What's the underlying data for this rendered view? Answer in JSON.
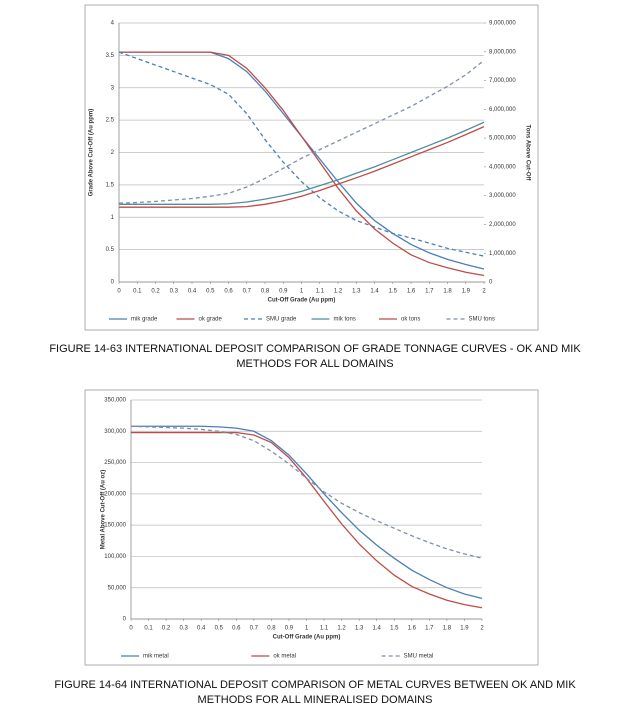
{
  "chart_data": [
    {
      "type": "line",
      "caption": "FIGURE 14-63 INTERNATIONAL DEPOSIT COMPARISON OF GRADE TONNAGE CURVES - OK AND MIK METHODS FOR ALL DOMAINS",
      "x_label": "Cut-Off Grade (Au ppm)",
      "y_label": "Grade Above Cut-Off (Au ppm)",
      "y2_label": "Tons Above Cut-Off",
      "x": [
        0,
        0.1,
        0.2,
        0.3,
        0.4,
        0.5,
        0.6,
        0.7,
        0.8,
        0.9,
        1,
        1.1,
        1.2,
        1.3,
        1.4,
        1.5,
        1.6,
        1.7,
        1.8,
        1.9,
        2
      ],
      "xlim": [
        0,
        2
      ],
      "xticks": [
        0,
        0.1,
        0.2,
        0.3,
        0.4,
        0.5,
        0.6,
        0.7,
        0.8,
        0.9,
        1,
        1.1,
        1.2,
        1.3,
        1.4,
        1.5,
        1.6,
        1.7,
        1.8,
        1.9,
        2
      ],
      "ylim": [
        0,
        4
      ],
      "yticks": [
        0,
        0.5,
        1,
        1.5,
        2,
        2.5,
        3,
        3.5,
        4
      ],
      "y2lim": [
        0,
        9000000
      ],
      "y2ticks": [
        0,
        {
          "value": 1000000,
          "label": "1,000,000"
        },
        {
          "value": 2000000,
          "label": "2,000,000"
        },
        {
          "value": 3000000,
          "label": "3,000,000"
        },
        {
          "value": 4000000,
          "label": "4,000,000"
        },
        {
          "value": 5000000,
          "label": "5,000,000"
        },
        {
          "value": 6000000,
          "label": "6,000,000"
        },
        {
          "value": 7000000,
          "label": "7,000,000"
        },
        {
          "value": 8000000,
          "label": "8,000,000"
        },
        {
          "value": 9000000,
          "label": "9,000,000"
        }
      ],
      "grid": true,
      "series": [
        {
          "name": "mik grade",
          "color": "#4a7ebb",
          "dash": false,
          "values": [
            3.55,
            3.55,
            3.55,
            3.55,
            3.55,
            3.55,
            3.45,
            3.25,
            2.95,
            2.6,
            2.25,
            1.9,
            1.55,
            1.22,
            0.95,
            0.75,
            0.58,
            0.45,
            0.35,
            0.27,
            0.2
          ]
        },
        {
          "name": "ok grade",
          "color": "#be4b48",
          "dash": false,
          "values": [
            3.55,
            3.55,
            3.55,
            3.55,
            3.55,
            3.55,
            3.5,
            3.3,
            3.0,
            2.65,
            2.25,
            1.85,
            1.45,
            1.1,
            0.82,
            0.6,
            0.42,
            0.3,
            0.22,
            0.15,
            0.1
          ]
        },
        {
          "name": "SMU grade",
          "color": "#4a7ebb",
          "dash": true,
          "values": [
            3.55,
            3.45,
            3.35,
            3.25,
            3.15,
            3.05,
            2.9,
            2.6,
            2.2,
            1.85,
            1.55,
            1.3,
            1.1,
            0.95,
            0.85,
            0.75,
            0.68,
            0.6,
            0.52,
            0.46,
            0.4
          ]
        },
        {
          "name": "mik tons",
          "color": "#4e8f9e",
          "dash": false,
          "axis": "y2",
          "values": [
            2700000,
            2700000,
            2700000,
            2700000,
            2700000,
            2700000,
            2720000,
            2780000,
            2880000,
            3000000,
            3150000,
            3350000,
            3550000,
            3780000,
            4000000,
            4250000,
            4500000,
            4750000,
            5000000,
            5270000,
            5550000
          ]
        },
        {
          "name": "ok tons",
          "color": "#be4b48",
          "dash": false,
          "axis": "y2",
          "values": [
            2600000,
            2600000,
            2600000,
            2600000,
            2600000,
            2600000,
            2600000,
            2620000,
            2700000,
            2820000,
            2980000,
            3180000,
            3400000,
            3620000,
            3850000,
            4100000,
            4350000,
            4600000,
            4850000,
            5120000,
            5400000
          ]
        },
        {
          "name": "SMU tons",
          "color": "#7f8fa8",
          "dash": true,
          "axis": "y2",
          "values": [
            2740000,
            2760000,
            2800000,
            2850000,
            2900000,
            2980000,
            3080000,
            3300000,
            3600000,
            3950000,
            4300000,
            4600000,
            4900000,
            5200000,
            5500000,
            5800000,
            6100000,
            6450000,
            6800000,
            7200000,
            7700000
          ]
        }
      ]
    },
    {
      "type": "line",
      "caption": "FIGURE 14-64 INTERNATIONAL DEPOSIT COMPARISON OF METAL CURVES BETWEEN OK AND MIK METHODS FOR ALL MINERALISED DOMAINS",
      "x_label": "Cut-Off Grade (Au ppm)",
      "y_label": "Metal Above Cut-Off (Au oz)",
      "x": [
        0,
        0.1,
        0.2,
        0.3,
        0.4,
        0.5,
        0.6,
        0.7,
        0.8,
        0.9,
        1,
        1.1,
        1.2,
        1.3,
        1.4,
        1.5,
        1.6,
        1.7,
        1.8,
        1.9,
        2
      ],
      "xlim": [
        0,
        2
      ],
      "xticks": [
        0,
        0.1,
        0.2,
        0.3,
        0.4,
        0.5,
        0.6,
        0.7,
        0.8,
        0.9,
        1,
        1.1,
        1.2,
        1.3,
        1.4,
        1.5,
        1.6,
        1.7,
        1.8,
        1.9,
        2
      ],
      "ylim": [
        0,
        350000
      ],
      "yticks": [
        0,
        {
          "value": 50000,
          "label": "50,000"
        },
        {
          "value": 100000,
          "label": "100,000"
        },
        {
          "value": 150000,
          "label": "150,000"
        },
        {
          "value": 200000,
          "label": "200,000"
        },
        {
          "value": 250000,
          "label": "250,000"
        },
        {
          "value": 300000,
          "label": "300,000"
        },
        {
          "value": 350000,
          "label": "350,000"
        }
      ],
      "grid": true,
      "series": [
        {
          "name": "mik metal",
          "color": "#4a7ebb",
          "dash": false,
          "values": [
            308000,
            308000,
            308000,
            308000,
            308000,
            307000,
            305000,
            300000,
            285000,
            262000,
            232000,
            200000,
            170000,
            142000,
            118000,
            97000,
            78000,
            63000,
            50000,
            40000,
            33000
          ]
        },
        {
          "name": "ok metal",
          "color": "#be4b48",
          "dash": false,
          "values": [
            298000,
            298000,
            298000,
            298000,
            298000,
            298000,
            298000,
            294000,
            282000,
            258000,
            225000,
            188000,
            152000,
            120000,
            93000,
            70000,
            52000,
            40000,
            30000,
            23000,
            18000
          ]
        },
        {
          "name": "SMU metal",
          "color": "#7f8fa8",
          "dash": true,
          "values": [
            308000,
            307000,
            306000,
            305000,
            303000,
            300000,
            295000,
            285000,
            268000,
            248000,
            225000,
            203000,
            185000,
            170000,
            157000,
            145000,
            133000,
            122000,
            112000,
            104000,
            97000
          ]
        }
      ]
    }
  ]
}
